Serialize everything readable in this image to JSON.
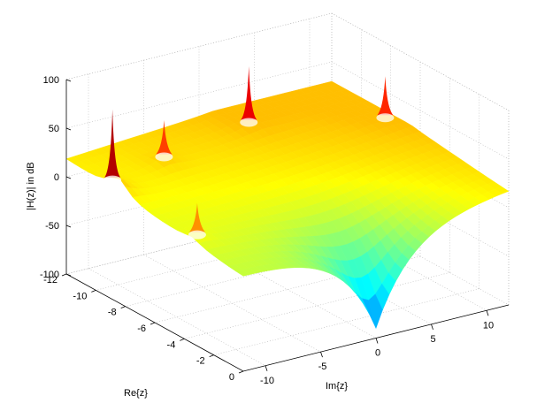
{
  "chart_data": {
    "type": "surface",
    "title": "",
    "xlabel": "Re{z}",
    "ylabel": "Im{z}",
    "zlabel": "|H(z)| in dB",
    "xlim": [
      -12,
      0
    ],
    "ylim": [
      -12,
      12
    ],
    "zlim": [
      -100,
      100
    ],
    "x_ticks": [
      "-12",
      "-10",
      "-8",
      "-6",
      "-4",
      "-2",
      "0"
    ],
    "y_ticks": [
      "-10",
      "-5",
      "0",
      "5",
      "10"
    ],
    "z_ticks": [
      "-100",
      "-50",
      "0",
      "50",
      "100"
    ],
    "grid": true,
    "colormap": "jet",
    "surface_peaks_note": "",
    "poles": [
      {
        "re": -8.5,
        "im": -12.5,
        "height_db": 100
      },
      {
        "re": -9.5,
        "im": -6.5,
        "height_db": 35
      },
      {
        "re": -3.5,
        "im": -11.5,
        "height_db": 30
      },
      {
        "re": -10.5,
        "im": 2.5,
        "height_db": 55
      },
      {
        "re": -8.0,
        "im": 11.5,
        "height_db": 40
      }
    ],
    "zeros": [
      {
        "re": 0,
        "im": 0,
        "depth_db": -100
      }
    ]
  }
}
